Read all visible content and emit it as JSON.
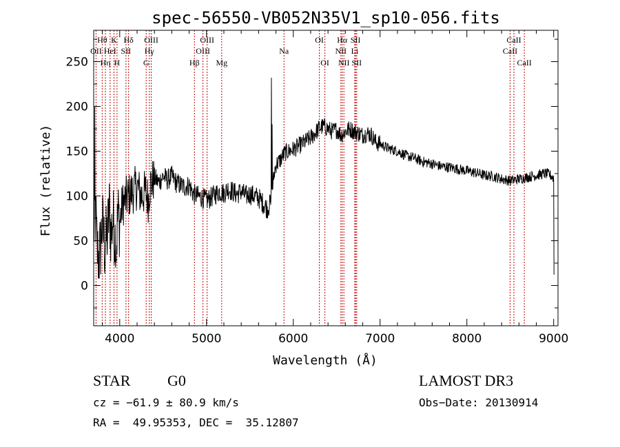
{
  "chart_data": {
    "type": "line",
    "title": "spec-56550-VB052N35V1_sp10-056.fits",
    "xlabel": "Wavelength (Å)",
    "ylabel": "Flux (relative)",
    "xlim": [
      3700,
      9050
    ],
    "ylim": [
      -45,
      285
    ],
    "xticks": [
      {
        "value": 4000,
        "label": "4000"
      },
      {
        "value": 5000,
        "label": "5000"
      },
      {
        "value": 6000,
        "label": "6000"
      },
      {
        "value": 7000,
        "label": "7000"
      },
      {
        "value": 8000,
        "label": "8000"
      },
      {
        "value": 9000,
        "label": "9000"
      }
    ],
    "yticks": [
      {
        "value": 0,
        "label": "0"
      },
      {
        "value": 50,
        "label": "50"
      },
      {
        "value": 100,
        "label": "100"
      },
      {
        "value": 150,
        "label": "150"
      },
      {
        "value": 200,
        "label": "200"
      },
      {
        "value": 250,
        "label": "250"
      }
    ],
    "series": [
      {
        "anchors": [
          [
            3700,
            60
          ],
          [
            3720,
            85
          ],
          [
            3740,
            40
          ],
          [
            3760,
            30
          ],
          [
            3780,
            45
          ],
          [
            3800,
            70
          ],
          [
            3830,
            40
          ],
          [
            3860,
            60
          ],
          [
            3880,
            85
          ],
          [
            3900,
            55
          ],
          [
            3920,
            75
          ],
          [
            3940,
            60
          ],
          [
            3960,
            45
          ],
          [
            3980,
            80
          ],
          [
            4000,
            70
          ],
          [
            4030,
            90
          ],
          [
            4060,
            95
          ],
          [
            4100,
            100
          ],
          [
            4150,
            105
          ],
          [
            4200,
            110
          ],
          [
            4250,
            100
          ],
          [
            4300,
            105
          ],
          [
            4330,
            95
          ],
          [
            4350,
            112
          ],
          [
            4400,
            120
          ],
          [
            4450,
            115
          ],
          [
            4500,
            122
          ],
          [
            4550,
            118
          ],
          [
            4600,
            122
          ],
          [
            4650,
            115
          ],
          [
            4700,
            112
          ],
          [
            4750,
            110
          ],
          [
            4800,
            112
          ],
          [
            4850,
            102
          ],
          [
            4900,
            100
          ],
          [
            4950,
            98
          ],
          [
            5000,
            95
          ],
          [
            5050,
            98
          ],
          [
            5100,
            102
          ],
          [
            5150,
            105
          ],
          [
            5200,
            103
          ],
          [
            5250,
            108
          ],
          [
            5300,
            105
          ],
          [
            5350,
            102
          ],
          [
            5400,
            105
          ],
          [
            5450,
            100
          ],
          [
            5500,
            102
          ],
          [
            5550,
            100
          ],
          [
            5600,
            98
          ],
          [
            5650,
            92
          ],
          [
            5700,
            86
          ],
          [
            5740,
            92
          ],
          [
            5780,
            125
          ],
          [
            5800,
            135
          ],
          [
            5850,
            140
          ],
          [
            5900,
            148
          ],
          [
            5950,
            150
          ],
          [
            6000,
            152
          ],
          [
            6100,
            158
          ],
          [
            6200,
            165
          ],
          [
            6250,
            170
          ],
          [
            6300,
            176
          ],
          [
            6350,
            178
          ],
          [
            6400,
            175
          ],
          [
            6450,
            172
          ],
          [
            6500,
            174
          ],
          [
            6550,
            168
          ],
          [
            6600,
            172
          ],
          [
            6650,
            175
          ],
          [
            6700,
            172
          ],
          [
            6750,
            170
          ],
          [
            6800,
            168
          ],
          [
            6850,
            170
          ],
          [
            6900,
            168
          ],
          [
            6950,
            160
          ],
          [
            7000,
            158
          ],
          [
            7100,
            153
          ],
          [
            7200,
            150
          ],
          [
            7300,
            145
          ],
          [
            7400,
            142
          ],
          [
            7500,
            138
          ],
          [
            7600,
            136
          ],
          [
            7700,
            133
          ],
          [
            7800,
            132
          ],
          [
            7900,
            130
          ],
          [
            8000,
            128
          ],
          [
            8100,
            126
          ],
          [
            8200,
            123
          ],
          [
            8300,
            122
          ],
          [
            8400,
            119
          ],
          [
            8500,
            117
          ],
          [
            8600,
            119
          ],
          [
            8700,
            121
          ],
          [
            8800,
            123
          ],
          [
            8900,
            125
          ],
          [
            8950,
            124
          ],
          [
            9000,
            120
          ]
        ],
        "spikes": [
          [
            5748,
            232
          ],
          [
            5756,
            180
          ],
          [
            3710,
            200
          ],
          [
            3950,
            20
          ],
          [
            9004,
            12
          ]
        ]
      }
    ],
    "lines": [
      {
        "label": "Hθ",
        "x": 3798,
        "row": 0
      },
      {
        "label": "OII",
        "x": 3727,
        "row": 1
      },
      {
        "label": "Hη",
        "x": 3835,
        "row": 2
      },
      {
        "label": "K",
        "x": 3934,
        "row": 0
      },
      {
        "label": "HeI",
        "x": 3889,
        "row": 1
      },
      {
        "label": "H",
        "x": 3969,
        "row": 2
      },
      {
        "label": "Hδ",
        "x": 4102,
        "row": 0
      },
      {
        "label": "SII",
        "x": 4072,
        "row": 1
      },
      {
        "label": "OIII",
        "x": 4363,
        "row": 0
      },
      {
        "label": "Hγ",
        "x": 4341,
        "row": 1
      },
      {
        "label": "G",
        "x": 4305,
        "row": 2
      },
      {
        "label": "Hβ",
        "x": 4861,
        "row": 2
      },
      {
        "label": "OIII",
        "x": 5007,
        "row": 0
      },
      {
        "label": "OIII",
        "x": 4959,
        "row": 1
      },
      {
        "label": "Mg",
        "x": 5175,
        "row": 2
      },
      {
        "label": "Na",
        "x": 5893,
        "row": 1
      },
      {
        "label": "OI",
        "x": 6300,
        "row": 0
      },
      {
        "label": "OI",
        "x": 6364,
        "row": 2
      },
      {
        "label": "Hα",
        "x": 6563,
        "row": 0
      },
      {
        "label": "NII",
        "x": 6548,
        "row": 1
      },
      {
        "label": "NII",
        "x": 6583,
        "row": 2
      },
      {
        "label": "SII",
        "x": 6717,
        "row": 0
      },
      {
        "label": "Li",
        "x": 6708,
        "row": 1
      },
      {
        "label": "SII",
        "x": 6731,
        "row": 2
      },
      {
        "label": "CaII",
        "x": 8542,
        "row": 0
      },
      {
        "label": "CaII",
        "x": 8498,
        "row": 1
      },
      {
        "label": "CaII",
        "x": 8662,
        "row": 2
      }
    ]
  },
  "info": {
    "class_label": "STAR",
    "subclass": "G0",
    "survey": "LAMOST DR3",
    "cz": "cz = −61.9 ± 80.9 km/s",
    "obsdate": "Obs−Date: 20130914",
    "radec": "RA =  49.95353, DEC =  35.12807"
  }
}
